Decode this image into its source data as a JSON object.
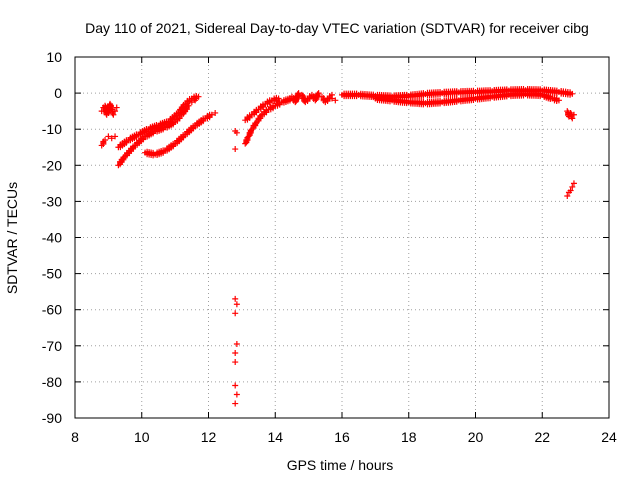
{
  "chart_data": {
    "type": "scatter",
    "title": "Day 110 of 2021, Sidereal Day-to-day VTEC variation (SDTVAR) for receiver cibg",
    "xlabel": "GPS time / hours",
    "ylabel": "SDTVAR / TECUs",
    "xlim": [
      8,
      24
    ],
    "ylim": [
      -90,
      10
    ],
    "xticks": [
      8,
      10,
      12,
      14,
      16,
      18,
      20,
      22,
      24
    ],
    "yticks": [
      10,
      0,
      -10,
      -20,
      -30,
      -40,
      -50,
      -60,
      -70,
      -80,
      -90
    ],
    "grid": true,
    "marker": "+",
    "color": "#ff0000",
    "series": [
      {
        "name": "cluster-early-a",
        "points": [
          [
            8.8,
            -5.0
          ],
          [
            8.85,
            -4.0
          ],
          [
            8.9,
            -3.5
          ],
          [
            8.95,
            -6.0
          ],
          [
            9.0,
            -5.5
          ],
          [
            9.05,
            -3.0
          ],
          [
            9.1,
            -4.5
          ],
          [
            9.15,
            -6.0
          ],
          [
            9.2,
            -5.0
          ],
          [
            9.25,
            -4.0
          ]
        ]
      },
      {
        "name": "arc-lower-early",
        "points": [
          [
            8.8,
            -14.5
          ],
          [
            8.9,
            -13.0
          ],
          [
            9.0,
            -12.0
          ],
          [
            9.1,
            -12.5
          ],
          [
            9.2,
            -12.0
          ]
        ]
      },
      {
        "name": "arc-rising-1",
        "points": [
          [
            9.3,
            -20.0
          ],
          [
            9.5,
            -17.5
          ],
          [
            9.8,
            -14.5
          ],
          [
            10.1,
            -12.0
          ],
          [
            10.4,
            -10.5
          ],
          [
            10.7,
            -9.5
          ],
          [
            11.0,
            -8.0
          ],
          [
            11.2,
            -6.0
          ],
          [
            11.4,
            -3.5
          ],
          [
            11.5,
            -2.5
          ],
          [
            11.6,
            -2.0
          ]
        ]
      },
      {
        "name": "arc-rising-2",
        "points": [
          [
            9.3,
            -15.0
          ],
          [
            9.6,
            -13.0
          ],
          [
            9.9,
            -11.5
          ],
          [
            10.2,
            -10.0
          ],
          [
            10.5,
            -9.0
          ],
          [
            10.8,
            -8.0
          ],
          [
            11.1,
            -5.5
          ],
          [
            11.3,
            -3.0
          ],
          [
            11.5,
            -1.5
          ],
          [
            11.7,
            -1.0
          ]
        ]
      },
      {
        "name": "arc-descending",
        "points": [
          [
            10.1,
            -16.5
          ],
          [
            10.4,
            -17.0
          ],
          [
            10.7,
            -16.0
          ],
          [
            11.0,
            -14.0
          ],
          [
            11.3,
            -11.5
          ],
          [
            11.6,
            -9.0
          ],
          [
            11.9,
            -7.0
          ],
          [
            12.1,
            -6.0
          ],
          [
            12.2,
            -5.5
          ]
        ]
      },
      {
        "name": "outlier-column",
        "points": [
          [
            12.8,
            -10.5
          ],
          [
            12.85,
            -11.0
          ],
          [
            12.8,
            -15.5
          ],
          [
            12.8,
            -57.0
          ],
          [
            12.85,
            -58.5
          ],
          [
            12.8,
            -61.0
          ],
          [
            12.85,
            -69.5
          ],
          [
            12.8,
            -72.0
          ],
          [
            12.8,
            -74.5
          ],
          [
            12.8,
            -81.0
          ],
          [
            12.85,
            -83.5
          ],
          [
            12.8,
            -86.0
          ]
        ]
      },
      {
        "name": "arc-rising-3",
        "points": [
          [
            13.1,
            -14.0
          ],
          [
            13.2,
            -12.0
          ],
          [
            13.3,
            -10.0
          ],
          [
            13.45,
            -8.0
          ],
          [
            13.6,
            -6.0
          ],
          [
            13.8,
            -4.5
          ],
          [
            14.0,
            -3.5
          ],
          [
            14.2,
            -2.5
          ],
          [
            14.5,
            -1.5
          ]
        ]
      },
      {
        "name": "arc-rising-4",
        "points": [
          [
            13.1,
            -7.5
          ],
          [
            13.3,
            -6.0
          ],
          [
            13.5,
            -4.5
          ],
          [
            13.7,
            -3.0
          ],
          [
            13.9,
            -2.0
          ],
          [
            14.1,
            -1.5
          ]
        ]
      },
      {
        "name": "band-midday",
        "points": [
          [
            14.5,
            -1.0
          ],
          [
            14.8,
            -0.5
          ],
          [
            15.1,
            -0.5
          ],
          [
            15.4,
            -1.0
          ],
          [
            15.7,
            -0.5
          ],
          [
            14.6,
            -2.5
          ],
          [
            14.9,
            -2.5
          ],
          [
            15.2,
            -2.0
          ],
          [
            15.5,
            -2.5
          ],
          [
            15.8,
            -2.0
          ],
          [
            14.7,
            0.0
          ],
          [
            15.3,
            0.0
          ],
          [
            15.7,
            -1.5
          ]
        ]
      },
      {
        "name": "band-afternoon-upper",
        "points": [
          [
            16.0,
            -0.5
          ],
          [
            16.5,
            -0.5
          ],
          [
            17.0,
            -0.8
          ],
          [
            17.5,
            -1.0
          ],
          [
            18.0,
            -0.8
          ],
          [
            18.5,
            -0.3
          ],
          [
            19.0,
            0.0
          ],
          [
            19.5,
            0.2
          ],
          [
            20.0,
            0.3
          ],
          [
            20.5,
            0.5
          ],
          [
            21.0,
            0.7
          ],
          [
            21.5,
            0.8
          ],
          [
            22.0,
            0.7
          ],
          [
            22.5,
            0.3
          ],
          [
            22.9,
            -0.2
          ]
        ]
      },
      {
        "name": "band-afternoon-lower",
        "points": [
          [
            17.0,
            -1.5
          ],
          [
            17.5,
            -2.0
          ],
          [
            18.0,
            -2.5
          ],
          [
            18.5,
            -2.8
          ],
          [
            19.0,
            -2.5
          ],
          [
            19.5,
            -2.0
          ],
          [
            20.0,
            -1.5
          ],
          [
            20.5,
            -1.0
          ],
          [
            21.0,
            -0.5
          ],
          [
            21.5,
            -0.3
          ],
          [
            22.0,
            -0.5
          ],
          [
            22.3,
            -1.5
          ],
          [
            22.5,
            -2.0
          ]
        ]
      },
      {
        "name": "cluster-late",
        "points": [
          [
            22.75,
            -5.0
          ],
          [
            22.8,
            -6.5
          ],
          [
            22.85,
            -5.5
          ],
          [
            22.9,
            -7.0
          ],
          [
            22.95,
            -6.0
          ]
        ]
      },
      {
        "name": "arc-late-rising",
        "points": [
          [
            22.75,
            -28.5
          ],
          [
            22.8,
            -27.5
          ],
          [
            22.85,
            -27.0
          ],
          [
            22.9,
            -26.0
          ],
          [
            22.95,
            -25.0
          ]
        ]
      }
    ]
  }
}
